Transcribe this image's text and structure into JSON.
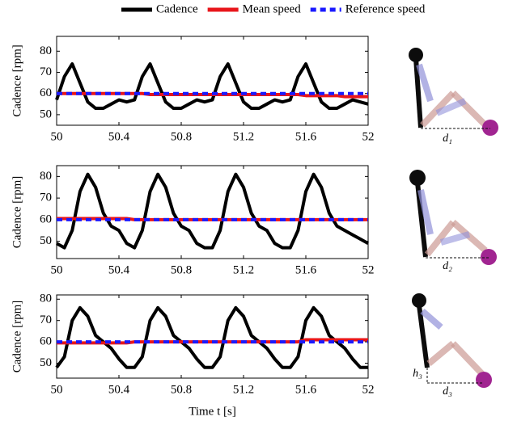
{
  "chart_data": [
    {
      "type": "line",
      "ylabel": "Cadence [rpm]",
      "annotations": [
        "d₁"
      ],
      "x": [
        50,
        50.05,
        50.1,
        50.15,
        50.2,
        50.25,
        50.3,
        50.35,
        50.4,
        50.45,
        50.5,
        50.55,
        50.6,
        50.65,
        50.7,
        50.75,
        50.8,
        50.85,
        50.9,
        50.95,
        51,
        51.05,
        51.1,
        51.15,
        51.2,
        51.25,
        51.3,
        51.35,
        51.4,
        51.45,
        51.5,
        51.55,
        51.6,
        51.65,
        51.7,
        51.75,
        51.8,
        51.85,
        51.9,
        51.95,
        52
      ],
      "xlim": [
        50,
        52
      ],
      "xticks": [
        50,
        50.4,
        50.8,
        51.2,
        51.6,
        52
      ],
      "ylim": [
        45,
        87
      ],
      "yticks": [
        50,
        60,
        70,
        80
      ],
      "series": [
        {
          "name": "Cadence",
          "color": "#000000",
          "values": [
            57,
            68,
            74,
            65,
            56,
            53,
            53,
            55,
            57,
            56,
            57,
            68,
            74,
            65,
            56,
            53,
            53,
            55,
            57,
            56,
            57,
            68,
            74,
            65,
            56,
            53,
            53,
            55,
            57,
            56,
            57,
            68,
            74,
            65,
            56,
            53,
            53,
            55,
            57,
            56,
            55
          ]
        },
        {
          "name": "Mean speed",
          "color": "#e8161b",
          "values": [
            60,
            60,
            60,
            60,
            60,
            60,
            60,
            60,
            60,
            60,
            60,
            60,
            59.5,
            59.5,
            59.5,
            59.5,
            59.5,
            59.5,
            59.5,
            59.5,
            59.5,
            59.5,
            59.5,
            59.5,
            59.5,
            59.5,
            59.5,
            59.5,
            59.5,
            59.5,
            59.5,
            59.5,
            59,
            59,
            59,
            59,
            59,
            58.5,
            58.5,
            58.5,
            58.5
          ]
        },
        {
          "name": "Reference speed",
          "color": "#1a1aff",
          "dashed": true,
          "values": [
            60,
            60,
            60,
            60,
            60,
            60,
            60,
            60,
            60,
            60,
            60,
            60,
            60,
            60,
            60,
            60,
            60,
            60,
            60,
            60,
            60,
            60,
            60,
            60,
            60,
            60,
            60,
            60,
            60,
            60,
            60,
            60,
            60,
            60,
            60,
            60,
            60,
            60,
            60,
            60,
            60
          ]
        }
      ]
    },
    {
      "type": "line",
      "ylabel": "Cadence [rpm]",
      "annotations": [
        "d₂"
      ],
      "x": [
        50,
        50.05,
        50.1,
        50.15,
        50.2,
        50.25,
        50.3,
        50.35,
        50.4,
        50.45,
        50.5,
        50.55,
        50.6,
        50.65,
        50.7,
        50.75,
        50.8,
        50.85,
        50.9,
        50.95,
        51,
        51.05,
        51.1,
        51.15,
        51.2,
        51.25,
        51.3,
        51.35,
        51.4,
        51.45,
        51.5,
        51.55,
        51.6,
        51.65,
        51.7,
        51.75,
        51.8,
        51.85,
        51.9,
        51.95,
        52
      ],
      "xlim": [
        50,
        52
      ],
      "xticks": [
        50,
        50.4,
        50.8,
        51.2,
        51.6,
        52
      ],
      "ylim": [
        42,
        85
      ],
      "yticks": [
        50,
        60,
        70,
        80
      ],
      "series": [
        {
          "color": "#000000",
          "values": [
            49,
            47,
            55,
            73,
            81,
            75,
            63,
            57,
            55,
            49,
            47,
            55,
            73,
            81,
            75,
            63,
            57,
            55,
            49,
            47,
            47,
            55,
            73,
            81,
            75,
            63,
            57,
            55,
            49,
            47,
            47,
            55,
            73,
            81,
            75,
            63,
            57,
            55,
            53,
            51,
            49
          ]
        },
        {
          "color": "#e8161b",
          "values": [
            60.5,
            60.5,
            60.5,
            60.5,
            60.5,
            60.5,
            60.5,
            60.5,
            60.5,
            60.5,
            60,
            60,
            60,
            60,
            60,
            60,
            60,
            60,
            60,
            60,
            60,
            60,
            60,
            60,
            60,
            60,
            60,
            60,
            60,
            60,
            60,
            60,
            60,
            60,
            60,
            60,
            60,
            60,
            60,
            60,
            60
          ]
        },
        {
          "color": "#1a1aff",
          "dashed": true,
          "values": [
            60,
            60,
            60,
            60,
            60,
            60,
            60,
            60,
            60,
            60,
            60,
            60,
            60,
            60,
            60,
            60,
            60,
            60,
            60,
            60,
            60,
            60,
            60,
            60,
            60,
            60,
            60,
            60,
            60,
            60,
            60,
            60,
            60,
            60,
            60,
            60,
            60,
            60,
            60,
            60,
            60
          ]
        }
      ]
    },
    {
      "type": "line",
      "ylabel": "Cadence [rpm]",
      "xlabel": "Time t [s]",
      "annotations": [
        "d₃",
        "h₃"
      ],
      "x": [
        50,
        50.05,
        50.1,
        50.15,
        50.2,
        50.25,
        50.3,
        50.35,
        50.4,
        50.45,
        50.5,
        50.55,
        50.6,
        50.65,
        50.7,
        50.75,
        50.8,
        50.85,
        50.9,
        50.95,
        51,
        51.05,
        51.1,
        51.15,
        51.2,
        51.25,
        51.3,
        51.35,
        51.4,
        51.45,
        51.5,
        51.55,
        51.6,
        51.65,
        51.7,
        51.75,
        51.8,
        51.85,
        51.9,
        51.95,
        52
      ],
      "xlim": [
        50,
        52
      ],
      "xticks": [
        50,
        50.4,
        50.8,
        51.2,
        51.6,
        52
      ],
      "ylim": [
        43,
        82
      ],
      "yticks": [
        50,
        60,
        70,
        80
      ],
      "series": [
        {
          "color": "#000000",
          "values": [
            48,
            53,
            70,
            76,
            72,
            63,
            60,
            57,
            52,
            48,
            48,
            53,
            70,
            76,
            72,
            63,
            60,
            57,
            52,
            48,
            48,
            53,
            70,
            76,
            72,
            63,
            60,
            57,
            52,
            48,
            48,
            53,
            70,
            76,
            72,
            63,
            60,
            57,
            52,
            48,
            48
          ]
        },
        {
          "color": "#e8161b",
          "values": [
            59.5,
            59.5,
            59.5,
            59.5,
            59.5,
            59.5,
            59.5,
            59.5,
            59.5,
            59.5,
            60,
            60,
            60,
            60,
            60,
            60,
            60,
            60,
            60,
            60,
            60,
            60,
            60,
            60,
            60,
            60,
            60,
            60,
            60,
            60,
            60,
            60,
            61,
            61,
            61,
            61,
            61,
            61,
            61,
            61,
            61
          ]
        },
        {
          "color": "#1a1aff",
          "dashed": true,
          "values": [
            60,
            60,
            60,
            60,
            60,
            60,
            60,
            60,
            60,
            60,
            60,
            60,
            60,
            60,
            60,
            60,
            60,
            60,
            60,
            60,
            60,
            60,
            60,
            60,
            60,
            60,
            60,
            60,
            60,
            60,
            60,
            60,
            60,
            60,
            60,
            60,
            60,
            60,
            60,
            60,
            60
          ]
        }
      ]
    }
  ]
}
